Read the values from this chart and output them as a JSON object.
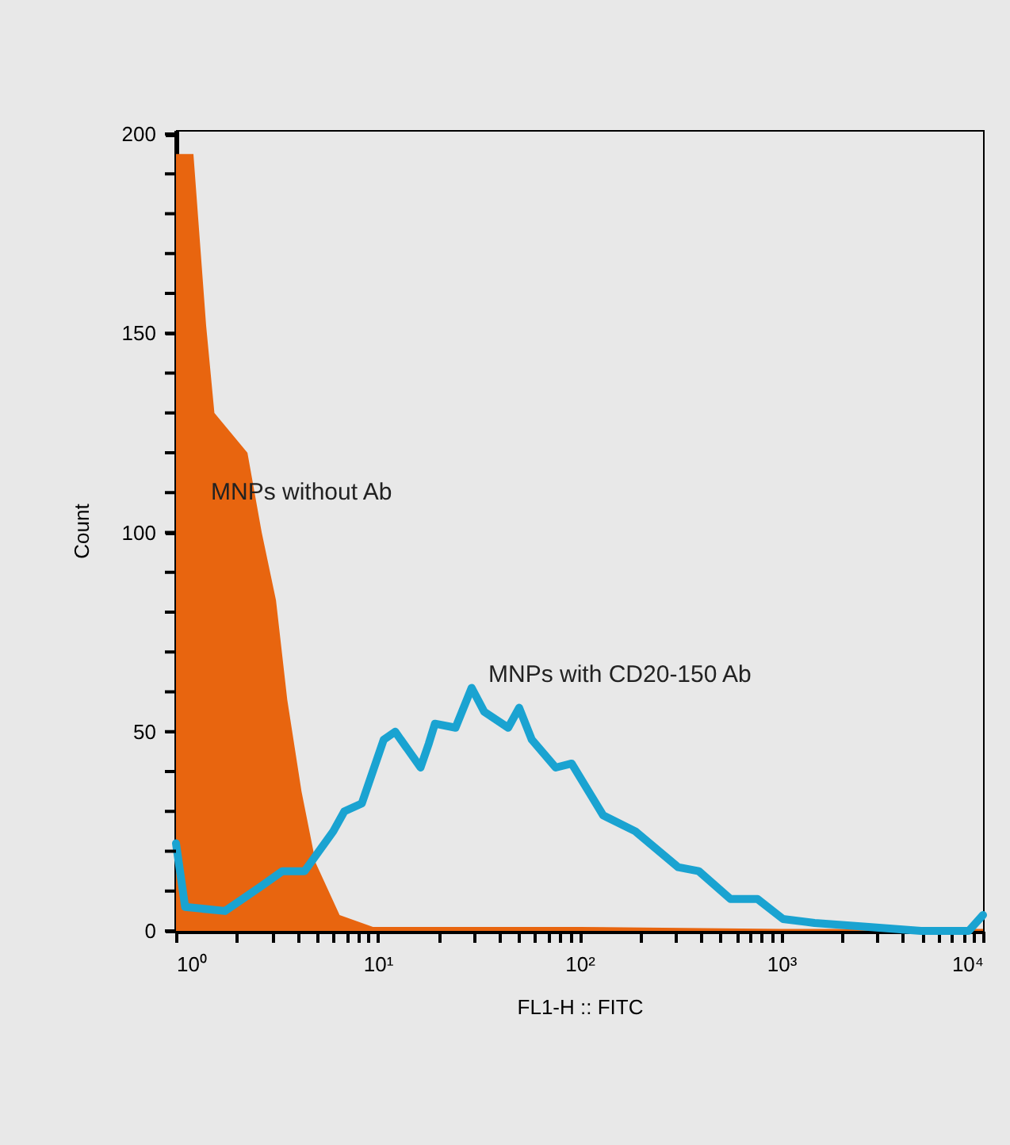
{
  "chart_data": {
    "type": "line",
    "xlabel": "FL1-H :: FITC",
    "ylabel": "Count",
    "log": "x",
    "grid": false,
    "legend": false,
    "marker": "none",
    "line_style": "solid",
    "xlim": [
      1,
      10000
    ],
    "ylim": [
      0,
      201
    ],
    "xticks": [
      {
        "value": 1,
        "label": "10⁰"
      },
      {
        "value": 2,
        "label": null
      },
      {
        "value": 3,
        "label": null
      },
      {
        "value": 4,
        "label": null
      },
      {
        "value": 5,
        "label": null
      },
      {
        "value": 6,
        "label": null
      },
      {
        "value": 7,
        "label": null
      },
      {
        "value": 8,
        "label": null
      },
      {
        "value": 9,
        "label": null
      },
      {
        "value": 10,
        "label": "10¹"
      },
      {
        "value": 20,
        "label": null
      },
      {
        "value": 30,
        "label": null
      },
      {
        "value": 40,
        "label": null
      },
      {
        "value": 50,
        "label": null
      },
      {
        "value": 60,
        "label": null
      },
      {
        "value": 70,
        "label": null
      },
      {
        "value": 80,
        "label": null
      },
      {
        "value": 90,
        "label": null
      },
      {
        "value": 100,
        "label": "10²"
      },
      {
        "value": 200,
        "label": null
      },
      {
        "value": 300,
        "label": null
      },
      {
        "value": 400,
        "label": null
      },
      {
        "value": 500,
        "label": null
      },
      {
        "value": 600,
        "label": null
      },
      {
        "value": 700,
        "label": null
      },
      {
        "value": 800,
        "label": null
      },
      {
        "value": 900,
        "label": null
      },
      {
        "value": 1000,
        "label": "10³"
      },
      {
        "value": 2000,
        "label": null
      },
      {
        "value": 3000,
        "label": null
      },
      {
        "value": 4000,
        "label": null
      },
      {
        "value": 5000,
        "label": null
      },
      {
        "value": 6000,
        "label": null
      },
      {
        "value": 7000,
        "label": null
      },
      {
        "value": 8000,
        "label": null
      },
      {
        "value": 9000,
        "label": null
      },
      {
        "value": 10000,
        "label": "10⁴"
      }
    ],
    "yticks": [
      0,
      {
        "value": 10,
        "label": null
      },
      {
        "value": 20,
        "label": null
      },
      {
        "value": 30,
        "label": null
      },
      {
        "value": 40,
        "label": null
      },
      50,
      {
        "value": 60,
        "label": null
      },
      {
        "value": 70,
        "label": null
      },
      {
        "value": 80,
        "label": null
      },
      {
        "value": 90,
        "label": null
      },
      100,
      {
        "value": 110,
        "label": null
      },
      {
        "value": 120,
        "label": null
      },
      {
        "value": 130,
        "label": null
      },
      {
        "value": 140,
        "label": null
      },
      150,
      {
        "value": 160,
        "label": null
      },
      {
        "value": 170,
        "label": null
      },
      {
        "value": 180,
        "label": null
      },
      {
        "value": 190,
        "label": null
      },
      200
    ],
    "series": [
      {
        "name": "MNPs without Ab",
        "type": "area",
        "color": "#e8650f",
        "x": [
          1,
          1.02,
          1.22,
          1.41,
          1.55,
          2.26,
          2.66,
          3.13,
          3.56,
          4.19,
          4.93,
          6.47,
          9.47,
          100,
          1000,
          10000
        ],
        "values": [
          195,
          195,
          195,
          152,
          130,
          120,
          100,
          83,
          58,
          35,
          17,
          4,
          1,
          1,
          0.5,
          0.5
        ]
      },
      {
        "name": "MNPs with CD20-150 Ab",
        "type": "line",
        "color": "#1aa3d1",
        "x": [
          1,
          1.11,
          1.75,
          2.61,
          3.37,
          4.34,
          6.02,
          6.83,
          8.34,
          10.7,
          12.2,
          16.3,
          17.9,
          19.2,
          24.3,
          29.2,
          33.7,
          44.3,
          50.2,
          58,
          76.2,
          91.4,
          131,
          189,
          308,
          390,
          560,
          762,
          1019,
          1462,
          2710,
          4930,
          8490,
          10000
        ],
        "values": [
          22,
          6,
          5,
          11,
          15,
          15,
          25,
          30,
          32,
          48,
          50,
          41,
          47,
          52,
          51,
          61,
          55,
          51,
          56,
          48,
          41,
          42,
          29,
          25,
          16,
          15,
          8,
          8,
          3,
          2,
          1,
          0,
          0,
          4
        ]
      }
    ]
  }
}
